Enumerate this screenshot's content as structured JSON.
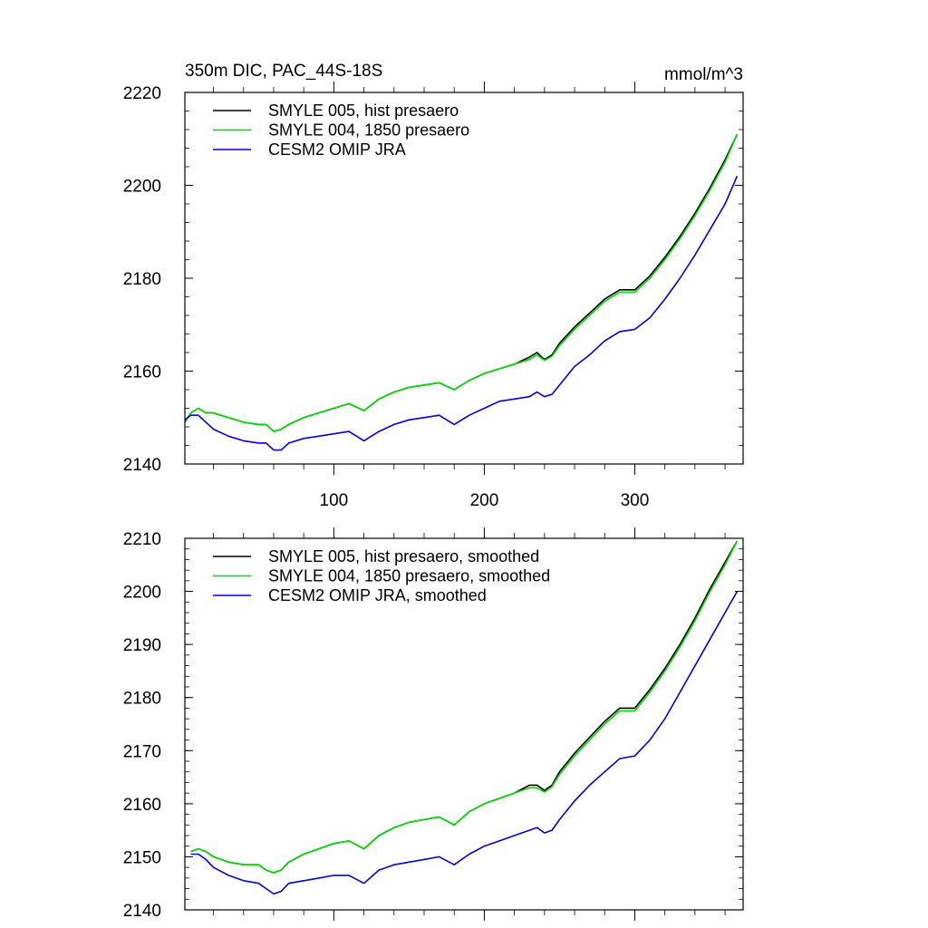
{
  "chart_data": [
    {
      "type": "line",
      "title": "350m DIC, PAC_44S-18S",
      "units": "mmol/m^3",
      "xlim": [
        1,
        372
      ],
      "ylim": [
        2140,
        2220
      ],
      "xticks": [
        100,
        200,
        300
      ],
      "xtick_labels": [
        "100",
        "200",
        "300"
      ],
      "yticks": [
        2140,
        2160,
        2180,
        2200,
        2220
      ],
      "ytick_labels": [
        "2140",
        "2160",
        "2180",
        "2200",
        "2220"
      ],
      "legend_position": "top-left",
      "series": [
        {
          "name": "SMYLE 005, hist presaero",
          "color": "#000000",
          "x": [
            1,
            5,
            10,
            15,
            20,
            30,
            40,
            50,
            55,
            60,
            65,
            70,
            80,
            90,
            100,
            110,
            120,
            130,
            140,
            150,
            160,
            170,
            180,
            190,
            200,
            210,
            220,
            230,
            235,
            240,
            245,
            250,
            260,
            270,
            280,
            290,
            300,
            310,
            320,
            330,
            340,
            350,
            360,
            368
          ],
          "values": [
            2149,
            2151,
            2152,
            2151,
            2151,
            2150,
            2149,
            2148.5,
            2148.5,
            2147,
            2147.5,
            2148.5,
            2150,
            2151,
            2152,
            2153,
            2151.5,
            2154,
            2155.5,
            2156.5,
            2157,
            2157.5,
            2156,
            2158,
            2159.5,
            2160.5,
            2161.5,
            2163,
            2164,
            2162.5,
            2163.5,
            2166,
            2169.5,
            2172.5,
            2175.5,
            2177.5,
            2177.5,
            2180.5,
            2184.5,
            2189,
            2194,
            2199.5,
            2205.5,
            2211
          ]
        },
        {
          "name": "SMYLE 004, 1850 presaero",
          "color": "#00dd00",
          "x": [
            1,
            5,
            10,
            15,
            20,
            30,
            40,
            50,
            55,
            60,
            65,
            70,
            80,
            90,
            100,
            110,
            120,
            130,
            140,
            150,
            160,
            170,
            180,
            190,
            200,
            210,
            220,
            230,
            235,
            240,
            245,
            250,
            260,
            270,
            280,
            290,
            300,
            310,
            320,
            330,
            340,
            350,
            360,
            368
          ],
          "values": [
            2149,
            2151,
            2152,
            2151,
            2151,
            2150,
            2149,
            2148.5,
            2148.5,
            2147,
            2147.5,
            2148.5,
            2150,
            2151,
            2152,
            2153,
            2151.5,
            2154,
            2155.5,
            2156.5,
            2157,
            2157.5,
            2156,
            2158,
            2159.5,
            2160.5,
            2161.5,
            2162.5,
            2163.5,
            2162.3,
            2163.2,
            2165.5,
            2169,
            2172,
            2175,
            2177,
            2177,
            2180,
            2184,
            2188.5,
            2193.5,
            2199,
            2205,
            2211
          ]
        },
        {
          "name": "CESM2 OMIP JRA",
          "color": "#0000dd",
          "x": [
            1,
            5,
            10,
            15,
            20,
            30,
            40,
            50,
            55,
            60,
            65,
            70,
            80,
            90,
            100,
            110,
            120,
            130,
            140,
            150,
            160,
            170,
            180,
            190,
            200,
            210,
            220,
            230,
            235,
            240,
            245,
            250,
            260,
            270,
            280,
            290,
            300,
            310,
            320,
            330,
            340,
            350,
            360,
            368
          ],
          "values": [
            2149.5,
            2150.5,
            2150.5,
            2149,
            2147.5,
            2146,
            2145,
            2144.5,
            2144.5,
            2143,
            2143,
            2144.5,
            2145.5,
            2146,
            2146.5,
            2147,
            2145,
            2147,
            2148.5,
            2149.5,
            2150,
            2150.5,
            2148.5,
            2150.5,
            2152,
            2153.5,
            2154,
            2154.5,
            2155.5,
            2154.5,
            2155,
            2157,
            2161,
            2163.5,
            2166.5,
            2168.5,
            2169,
            2171.5,
            2175.5,
            2180,
            2185,
            2190.5,
            2196,
            2202
          ]
        }
      ]
    },
    {
      "type": "line",
      "title": "",
      "xlim": [
        1,
        372
      ],
      "ylim": [
        2140,
        2210
      ],
      "xticks": [
        100,
        200,
        300
      ],
      "xtick_labels": [],
      "yticks": [
        2140,
        2150,
        2160,
        2170,
        2180,
        2190,
        2200,
        2210
      ],
      "ytick_labels": [
        "2140",
        "2150",
        "2160",
        "2170",
        "2180",
        "2190",
        "2200",
        "2210"
      ],
      "legend_position": "top-left",
      "series": [
        {
          "name": "SMYLE 005, hist presaero, smoothed",
          "color": "#000000",
          "x": [
            5,
            10,
            15,
            20,
            30,
            40,
            50,
            55,
            60,
            65,
            70,
            80,
            90,
            100,
            110,
            120,
            130,
            140,
            150,
            160,
            170,
            180,
            190,
            200,
            210,
            220,
            230,
            235,
            240,
            245,
            250,
            260,
            270,
            280,
            290,
            300,
            310,
            320,
            330,
            340,
            350,
            360,
            368
          ],
          "values": [
            2151,
            2151.5,
            2151,
            2150,
            2149,
            2148.5,
            2148.5,
            2147.5,
            2147,
            2147.5,
            2149,
            2150.5,
            2151.5,
            2152.5,
            2153,
            2151.5,
            2154,
            2155.5,
            2156.5,
            2157,
            2157.5,
            2156,
            2158.5,
            2160,
            2161,
            2162,
            2163.5,
            2163.5,
            2162.5,
            2163.5,
            2166,
            2169.5,
            2172.5,
            2175.5,
            2178,
            2178,
            2181.5,
            2185.5,
            2190,
            2195,
            2200.5,
            2205.5,
            2209.5
          ]
        },
        {
          "name": "SMYLE 004, 1850 presaero, smoothed",
          "color": "#00dd00",
          "x": [
            5,
            10,
            15,
            20,
            30,
            40,
            50,
            55,
            60,
            65,
            70,
            80,
            90,
            100,
            110,
            120,
            130,
            140,
            150,
            160,
            170,
            180,
            190,
            200,
            210,
            220,
            230,
            235,
            240,
            245,
            250,
            260,
            270,
            280,
            290,
            300,
            310,
            320,
            330,
            340,
            350,
            360,
            368
          ],
          "values": [
            2151,
            2151.5,
            2151,
            2150,
            2149,
            2148.5,
            2148.5,
            2147.5,
            2147,
            2147.5,
            2149,
            2150.5,
            2151.5,
            2152.5,
            2153,
            2151.5,
            2154,
            2155.5,
            2156.5,
            2157,
            2157.5,
            2156,
            2158.5,
            2160,
            2161,
            2162,
            2163,
            2163,
            2162.2,
            2163.2,
            2165.5,
            2169,
            2172,
            2175,
            2177.5,
            2177.5,
            2181,
            2185,
            2189.5,
            2194.5,
            2200,
            2205,
            2209.5
          ]
        },
        {
          "name": "CESM2 OMIP JRA, smoothed",
          "color": "#0000dd",
          "x": [
            5,
            10,
            15,
            20,
            30,
            40,
            50,
            55,
            60,
            65,
            70,
            80,
            90,
            100,
            110,
            120,
            130,
            140,
            150,
            160,
            170,
            180,
            190,
            200,
            210,
            220,
            230,
            235,
            240,
            245,
            250,
            260,
            270,
            280,
            290,
            300,
            310,
            320,
            330,
            340,
            350,
            360,
            368
          ],
          "values": [
            2150.5,
            2150.5,
            2149.5,
            2148,
            2146.5,
            2145.5,
            2145,
            2144,
            2143,
            2143.5,
            2145,
            2145.5,
            2146,
            2146.5,
            2146.5,
            2145,
            2147.5,
            2148.5,
            2149,
            2149.5,
            2150,
            2148.5,
            2150.5,
            2152,
            2153,
            2154,
            2155,
            2155.5,
            2154.5,
            2155,
            2157,
            2160.5,
            2163.5,
            2166,
            2168.5,
            2169,
            2172,
            2176,
            2181,
            2186,
            2191,
            2196,
            2200
          ]
        }
      ]
    }
  ]
}
